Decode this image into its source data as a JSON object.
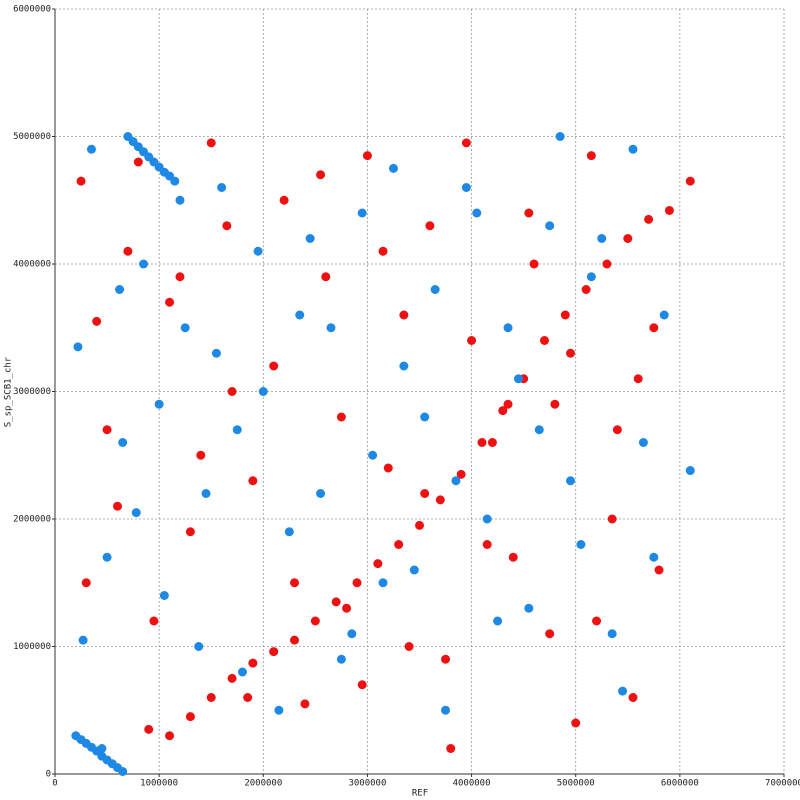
{
  "chart_data": {
    "type": "scatter",
    "x_label": "REF",
    "y_label": "S_sp_SCB1_chr",
    "xlim": [
      0,
      7000000
    ],
    "ylim": [
      0,
      6000000
    ],
    "xticks": [
      0,
      1000000,
      2000000,
      3000000,
      4000000,
      5000000,
      6000000,
      7000000
    ],
    "yticks": [
      0,
      1000000,
      2000000,
      3000000,
      4000000,
      5000000,
      6000000
    ],
    "grid": true,
    "series": [
      {
        "color": "#ee1111",
        "x": [
          250000,
          400000,
          600000,
          800000,
          950000,
          1200000,
          1400000,
          1650000,
          1850000,
          2100000,
          2300000,
          2550000,
          2750000,
          2950000,
          3150000,
          3350000,
          3550000,
          3750000,
          3950000,
          4150000,
          4350000,
          4550000,
          4750000,
          4950000,
          5150000,
          5350000,
          5550000,
          5750000,
          6100000,
          300000,
          500000,
          700000,
          900000,
          1100000,
          1300000,
          1500000,
          1700000,
          1900000,
          2200000,
          2400000,
          2600000,
          2800000,
          3000000,
          3200000,
          3400000,
          3600000,
          3800000,
          4000000,
          4200000,
          4400000,
          4600000,
          4800000,
          5000000,
          5200000,
          5400000,
          5600000,
          5800000,
          1100000,
          1300000,
          1500000,
          1700000,
          1900000,
          2100000,
          2300000,
          2500000,
          2700000,
          2900000,
          3100000,
          3300000,
          3500000,
          3700000,
          3900000,
          4100000,
          4300000,
          4500000,
          4700000,
          4900000,
          5100000,
          5300000,
          5500000,
          5700000,
          5900000
        ],
        "values": [
          4650000,
          3550000,
          2100000,
          4800000,
          1200000,
          3900000,
          2500000,
          4300000,
          600000,
          3200000,
          1500000,
          4700000,
          2800000,
          700000,
          4100000,
          3600000,
          2200000,
          900000,
          4950000,
          1800000,
          2900000,
          4400000,
          1100000,
          3300000,
          4850000,
          2000000,
          600000,
          3500000,
          4650000,
          1500000,
          2700000,
          4100000,
          350000,
          3700000,
          1900000,
          4950000,
          3000000,
          2300000,
          4500000,
          550000,
          3900000,
          1300000,
          4850000,
          2400000,
          1000000,
          4300000,
          200000,
          3400000,
          2600000,
          1700000,
          4000000,
          2900000,
          400000,
          1200000,
          2700000,
          3100000,
          1600000,
          300000,
          450000,
          600000,
          750000,
          870000,
          960000,
          1050000,
          1200000,
          1350000,
          1500000,
          1650000,
          1800000,
          1950000,
          2150000,
          2350000,
          2600000,
          2850000,
          3100000,
          3400000,
          3600000,
          3800000,
          4000000,
          4200000,
          4350000,
          4420000
        ]
      },
      {
        "color": "#1e88e5",
        "x": [
          220000,
          350000,
          500000,
          650000,
          850000,
          1050000,
          1250000,
          1450000,
          1600000,
          1800000,
          2000000,
          2250000,
          2450000,
          2650000,
          2850000,
          3050000,
          3250000,
          3450000,
          3650000,
          3850000,
          4050000,
          4250000,
          4450000,
          4650000,
          4850000,
          5050000,
          5250000,
          5450000,
          5650000,
          5850000,
          6100000,
          270000,
          450000,
          620000,
          780000,
          1000000,
          1200000,
          1380000,
          1550000,
          1750000,
          1950000,
          2150000,
          2350000,
          2550000,
          2750000,
          2950000,
          3150000,
          3350000,
          3550000,
          3750000,
          3950000,
          4150000,
          4350000,
          4550000,
          4750000,
          4950000,
          5150000,
          5350000,
          5550000,
          5750000,
          700000,
          750000,
          800000,
          850000,
          900000,
          950000,
          1000000,
          1050000,
          1100000,
          1150000,
          200000,
          250000,
          300000,
          350000,
          400000,
          450000,
          500000,
          550000,
          600000,
          650000
        ],
        "values": [
          3350000,
          4900000,
          1700000,
          2600000,
          4000000,
          1400000,
          3500000,
          2200000,
          4600000,
          800000,
          3000000,
          1900000,
          4200000,
          3500000,
          1100000,
          2500000,
          4750000,
          1600000,
          3800000,
          2300000,
          4400000,
          1200000,
          3100000,
          2700000,
          5000000,
          1800000,
          4200000,
          650000,
          2600000,
          3600000,
          2380000,
          1050000,
          200000,
          3800000,
          2050000,
          2900000,
          4500000,
          1000000,
          3300000,
          2700000,
          4100000,
          500000,
          3600000,
          2200000,
          900000,
          4400000,
          1500000,
          3200000,
          2800000,
          500000,
          4600000,
          2000000,
          3500000,
          1300000,
          4300000,
          2300000,
          3900000,
          1100000,
          4900000,
          1700000,
          5000000,
          4960000,
          4920000,
          4880000,
          4840000,
          4800000,
          4760000,
          4720000,
          4690000,
          4650000,
          300000,
          270000,
          240000,
          210000,
          180000,
          140000,
          110000,
          80000,
          50000,
          20000
        ]
      }
    ]
  }
}
